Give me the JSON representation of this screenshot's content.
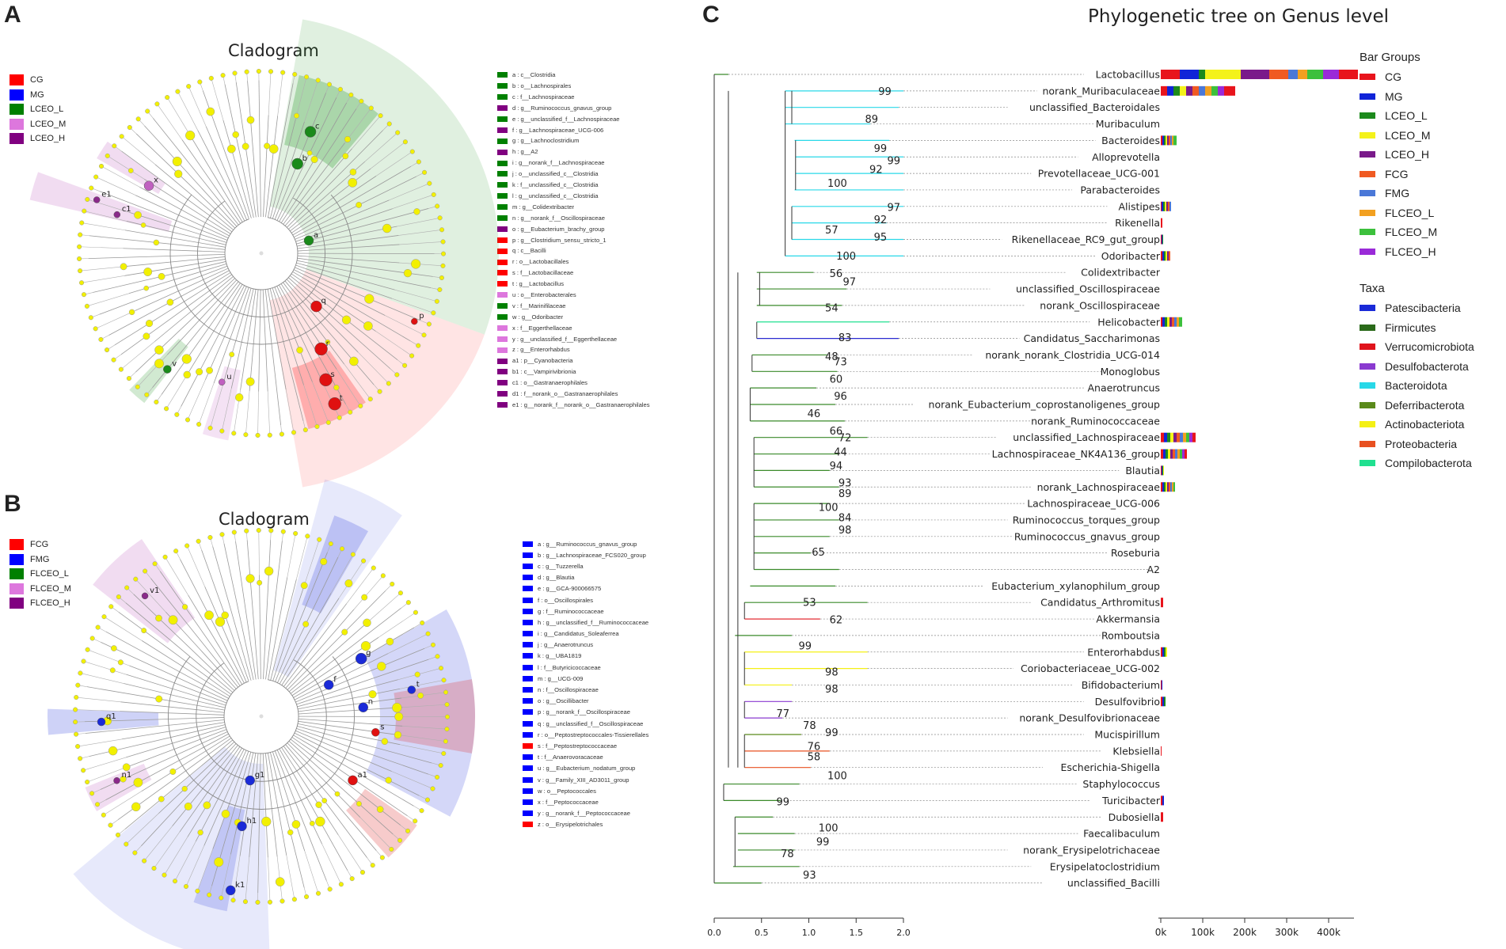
{
  "panel_a": {
    "letter": "A",
    "title": "Cladogram",
    "legend": [
      {
        "label": "CG",
        "color": "#ff0000"
      },
      {
        "label": "MG",
        "color": "#0000ff"
      },
      {
        "label": "LCEO_L",
        "color": "#008000"
      },
      {
        "label": "LCEO_M",
        "color": "#dd77dd"
      },
      {
        "label": "LCEO_H",
        "color": "#800080"
      }
    ],
    "keys": [
      {
        "text": "a : c__Clostridia",
        "color": "#008000"
      },
      {
        "text": "b : o__Lachnospirales",
        "color": "#008000"
      },
      {
        "text": "c : f__Lachnospiraceae",
        "color": "#008000"
      },
      {
        "text": "d : g__Ruminococcus_gnavus_group",
        "color": "#800080"
      },
      {
        "text": "e : g__unclassified_f__Lachnospiraceae",
        "color": "#008000"
      },
      {
        "text": "f : g__Lachnospiraceae_UCG-006",
        "color": "#800080"
      },
      {
        "text": "g : g__Lachnoclostridium",
        "color": "#008000"
      },
      {
        "text": "h : g__A2",
        "color": "#800080"
      },
      {
        "text": "i : g__norank_f__Lachnospiraceae",
        "color": "#008000"
      },
      {
        "text": "j : o__unclassified_c__Clostridia",
        "color": "#008000"
      },
      {
        "text": "k : f__unclassified_c__Clostridia",
        "color": "#008000"
      },
      {
        "text": "l : g__unclassified_c__Clostridia",
        "color": "#008000"
      },
      {
        "text": "m : g__Colidextribacter",
        "color": "#008000"
      },
      {
        "text": "n : g__norank_f__Oscillospiraceae",
        "color": "#008000"
      },
      {
        "text": "o : g__Eubacterium_brachy_group",
        "color": "#800080"
      },
      {
        "text": "p : g__Clostridium_sensu_stricto_1",
        "color": "#ff0000"
      },
      {
        "text": "q : c__Bacilli",
        "color": "#ff0000"
      },
      {
        "text": "r : o__Lactobacillales",
        "color": "#ff0000"
      },
      {
        "text": "s : f__Lactobacillaceae",
        "color": "#ff0000"
      },
      {
        "text": "t : g__Lactobacillus",
        "color": "#ff0000"
      },
      {
        "text": "u : o__Enterobacterales",
        "color": "#dd77dd"
      },
      {
        "text": "v : f__Marinifilaceae",
        "color": "#008000"
      },
      {
        "text": "w : g__Odoribacter",
        "color": "#008000"
      },
      {
        "text": "x : f__Eggerthellaceae",
        "color": "#dd77dd"
      },
      {
        "text": "y : g__unclassified_f__Eggerthellaceae",
        "color": "#dd77dd"
      },
      {
        "text": "z : g__Enterorhabdus",
        "color": "#dd77dd"
      },
      {
        "text": "a1 : p__Cyanobacteria",
        "color": "#800080"
      },
      {
        "text": "b1 : c__Vampirivibrionia",
        "color": "#800080"
      },
      {
        "text": "c1 : o__Gastranaerophilales",
        "color": "#800080"
      },
      {
        "text": "d1 : f__norank_o__Gastranaerophilales",
        "color": "#800080"
      },
      {
        "text": "e1 : g__norank_f__norank_o__Gastranaerophilales",
        "color": "#800080"
      }
    ]
  },
  "panel_b": {
    "letter": "B",
    "title": "Cladogram",
    "legend": [
      {
        "label": "FCG",
        "color": "#ff0000"
      },
      {
        "label": "FMG",
        "color": "#0000ff"
      },
      {
        "label": "FLCEO_L",
        "color": "#008000"
      },
      {
        "label": "FLCEO_M",
        "color": "#dd77dd"
      },
      {
        "label": "FLCEO_H",
        "color": "#800080"
      }
    ],
    "keys": [
      {
        "text": "a : g__Ruminococcus_gnavus_group",
        "color": "#0000ff"
      },
      {
        "text": "b : g__Lachnospiraceae_FCS020_group",
        "color": "#0000ff"
      },
      {
        "text": "c : g__Tuzzerella",
        "color": "#0000ff"
      },
      {
        "text": "d : g__Blautia",
        "color": "#0000ff"
      },
      {
        "text": "e : g__GCA-900066575",
        "color": "#0000ff"
      },
      {
        "text": "f : o__Oscillospirales",
        "color": "#0000ff"
      },
      {
        "text": "g : f__Ruminococcaceae",
        "color": "#0000ff"
      },
      {
        "text": "h : g__unclassified_f__Ruminococcaceae",
        "color": "#0000ff"
      },
      {
        "text": "i : g__Candidatus_Soleaferrea",
        "color": "#0000ff"
      },
      {
        "text": "j : g__Anaerotruncus",
        "color": "#0000ff"
      },
      {
        "text": "k : g__UBA1819",
        "color": "#0000ff"
      },
      {
        "text": "l : f__Butyricicoccaceae",
        "color": "#0000ff"
      },
      {
        "text": "m : g__UCG-009",
        "color": "#0000ff"
      },
      {
        "text": "n : f__Oscillospiraceae",
        "color": "#0000ff"
      },
      {
        "text": "o : g__Oscillibacter",
        "color": "#0000ff"
      },
      {
        "text": "p : g__norank_f__Oscillospiraceae",
        "color": "#0000ff"
      },
      {
        "text": "q : g__unclassified_f__Oscillospiraceae",
        "color": "#0000ff"
      },
      {
        "text": "r : o__Peptostreptococcales-Tissierellales",
        "color": "#0000ff"
      },
      {
        "text": "s : f__Peptostreptococcaceae",
        "color": "#ff0000"
      },
      {
        "text": "t : f__Anaerovoracaceae",
        "color": "#0000ff"
      },
      {
        "text": "u : g__Eubacterium_nodatum_group",
        "color": "#0000ff"
      },
      {
        "text": "v : g__Family_XIII_AD3011_group",
        "color": "#0000ff"
      },
      {
        "text": "w : o__Peptococcales",
        "color": "#0000ff"
      },
      {
        "text": "x : f__Peptococcaceae",
        "color": "#0000ff"
      },
      {
        "text": "y : g__norank_f__Peptococcaceae",
        "color": "#0000ff"
      },
      {
        "text": "z : o__Erysipelotrichales",
        "color": "#ff0000"
      }
    ]
  },
  "panel_c": {
    "letter": "C",
    "title": "Phylogenetic tree on Genus level",
    "bar_groups_title": "Bar Groups",
    "bar_groups": [
      {
        "label": "CG",
        "color": "#e8141c"
      },
      {
        "label": "MG",
        "color": "#1024d8"
      },
      {
        "label": "LCEO_L",
        "color": "#1c8a1c"
      },
      {
        "label": "LCEO_M",
        "color": "#f4f21a"
      },
      {
        "label": "LCEO_H",
        "color": "#7a1a8a"
      },
      {
        "label": "FCG",
        "color": "#f05a22"
      },
      {
        "label": "FMG",
        "color": "#4a78d8"
      },
      {
        "label": "FLCEO_L",
        "color": "#f2a020"
      },
      {
        "label": "FLCEO_M",
        "color": "#3cc03c"
      },
      {
        "label": "FLCEO_H",
        "color": "#9a2ad8"
      }
    ],
    "taxa_title": "Taxa",
    "taxa": [
      {
        "label": "Patescibacteria",
        "color": "#1a2ad8"
      },
      {
        "label": "Firmicutes",
        "color": "#2a6a1a"
      },
      {
        "label": "Verrucomicrobiota",
        "color": "#e0141c"
      },
      {
        "label": "Desulfobacterota",
        "color": "#8a3ad0"
      },
      {
        "label": "Bacteroidota",
        "color": "#28d8e8"
      },
      {
        "label": "Deferribacterota",
        "color": "#5a8a1a"
      },
      {
        "label": "Actinobacteriota",
        "color": "#f4f014"
      },
      {
        "label": "Proteobacteria",
        "color": "#e85020"
      },
      {
        "label": "Compilobacterota",
        "color": "#20e090"
      }
    ],
    "genera": [
      {
        "name": "Lactobacillus",
        "color": "#3a8a2a",
        "bars": [
          24,
          24,
          8,
          45,
          36,
          24,
          12,
          12,
          20,
          20,
          24
        ]
      },
      {
        "name": "norank_Muribaculaceae",
        "color": "#28d8e8",
        "bars": [
          8,
          8,
          8,
          8,
          8,
          8,
          8,
          8,
          8,
          8,
          14
        ]
      },
      {
        "name": "unclassified_Bacteroidales",
        "color": "#28d8e8",
        "bars": []
      },
      {
        "name": "Muribaculum",
        "color": "#28d8e8",
        "bars": []
      },
      {
        "name": "Bacteroides",
        "color": "#28d8e8",
        "bars": [
          2,
          2,
          2,
          2,
          2,
          2,
          2,
          2,
          4
        ]
      },
      {
        "name": "Alloprevotella",
        "color": "#28d8e8",
        "bars": []
      },
      {
        "name": "Prevotellaceae_UCG-001",
        "color": "#28d8e8",
        "bars": []
      },
      {
        "name": "Parabacteroides",
        "color": "#28d8e8",
        "bars": []
      },
      {
        "name": "Alistipes",
        "color": "#28d8e8",
        "bars": [
          1,
          2,
          2,
          2,
          2,
          2,
          2
        ]
      },
      {
        "name": "Rikenella",
        "color": "#28d8e8",
        "bars": [
          2
        ]
      },
      {
        "name": "Rikenellaceae_RC9_gut_group",
        "color": "#28d8e8",
        "bars": [
          1,
          1,
          1
        ]
      },
      {
        "name": "Odoribacter",
        "color": "#28d8e8",
        "bars": [
          2,
          2,
          2,
          2,
          2,
          2
        ]
      },
      {
        "name": "Colidextribacter",
        "color": "#3a8a2a",
        "bars": []
      },
      {
        "name": "unclassified_Oscillospiraceae",
        "color": "#3a8a2a",
        "bars": []
      },
      {
        "name": "norank_Oscillospiraceae",
        "color": "#3a8a2a",
        "bars": []
      },
      {
        "name": "Helicobacter",
        "color": "#20e090",
        "bars": [
          2,
          3,
          3,
          3,
          3,
          3,
          3,
          3,
          4
        ]
      },
      {
        "name": "Candidatus_Saccharimonas",
        "color": "#2a2ad0",
        "bars": []
      },
      {
        "name": "norank_norank_Clostridia_UCG-014",
        "color": "#3a8a2a",
        "bars": []
      },
      {
        "name": "Monoglobus",
        "color": "#3a8a2a",
        "bars": []
      },
      {
        "name": "Anaerotruncus",
        "color": "#3a8a2a",
        "bars": []
      },
      {
        "name": "norank_Eubacterium_coprostanoligenes_group",
        "color": "#3a8a2a",
        "bars": []
      },
      {
        "name": "norank_Ruminococcaceae",
        "color": "#3a8a2a",
        "bars": []
      },
      {
        "name": "unclassified_Lachnospiraceae",
        "color": "#3a8a2a",
        "bars": [
          4,
          4,
          4,
          4,
          4,
          4,
          4,
          4,
          4,
          4,
          4
        ]
      },
      {
        "name": "Lachnospiraceae_NK4A136_group",
        "color": "#3a8a2a",
        "bars": [
          3,
          3,
          3,
          3,
          3,
          3,
          3,
          3,
          3,
          3,
          3
        ]
      },
      {
        "name": "Blautia",
        "color": "#3a8a2a",
        "bars": [
          1,
          1,
          1,
          1
        ]
      },
      {
        "name": "norank_Lachnospiraceae",
        "color": "#3a8a2a",
        "bars": [
          2,
          2,
          2,
          2,
          2,
          2,
          2,
          2,
          2
        ]
      },
      {
        "name": "Lachnospiraceae_UCG-006",
        "color": "#3a8a2a",
        "bars": []
      },
      {
        "name": "Ruminococcus_torques_group",
        "color": "#3a8a2a",
        "bars": []
      },
      {
        "name": "Ruminococcus_gnavus_group",
        "color": "#3a8a2a",
        "bars": []
      },
      {
        "name": "Roseburia",
        "color": "#3a8a2a",
        "bars": []
      },
      {
        "name": "A2",
        "color": "#3a8a2a",
        "bars": []
      },
      {
        "name": "Eubacterium_xylanophilum_group",
        "color": "#3a8a2a",
        "bars": []
      },
      {
        "name": "Candidatus_Arthromitus",
        "color": "#3a8a2a",
        "bars": [
          3
        ]
      },
      {
        "name": "Akkermansia",
        "color": "#e0141c",
        "bars": []
      },
      {
        "name": "Romboutsia",
        "color": "#3a8a2a",
        "bars": []
      },
      {
        "name": "Enterorhabdus",
        "color": "#f4f014",
        "bars": [
          2,
          2,
          2,
          2
        ]
      },
      {
        "name": "Coriobacteriaceae_UCG-002",
        "color": "#f4f014",
        "bars": []
      },
      {
        "name": "Bifidobacterium",
        "color": "#f4f014",
        "bars": [
          1,
          1
        ]
      },
      {
        "name": "Desulfovibrio",
        "color": "#8a3ad0",
        "bars": [
          2,
          2,
          2
        ]
      },
      {
        "name": "norank_Desulfovibrionaceae",
        "color": "#8a3ad0",
        "bars": []
      },
      {
        "name": "Mucispirillum",
        "color": "#5a8a1a",
        "bars": []
      },
      {
        "name": "Klebsiella",
        "color": "#e85020",
        "bars": [
          1
        ]
      },
      {
        "name": "Escherichia-Shigella",
        "color": "#e85020",
        "bars": []
      },
      {
        "name": "Staphylococcus",
        "color": "#3a8a2a",
        "bars": []
      },
      {
        "name": "Turicibacter",
        "color": "#3a8a2a",
        "bars": [
          2,
          2
        ]
      },
      {
        "name": "Dubosiella",
        "color": "#3a8a2a",
        "bars": [
          3
        ]
      },
      {
        "name": "Faecalibaculum",
        "color": "#3a8a2a",
        "bars": []
      },
      {
        "name": "norank_Erysipelotrichaceae",
        "color": "#3a8a2a",
        "bars": []
      },
      {
        "name": "Erysipelatoclostridium",
        "color": "#3a8a2a",
        "bars": []
      },
      {
        "name": "unclassified_Bacilli",
        "color": "#3a8a2a",
        "bars": []
      }
    ],
    "bootstrap": [
      "99",
      "89",
      "99",
      "99",
      "92",
      "100",
      "97",
      "92",
      "95",
      "57",
      "100",
      "56",
      "97",
      "54",
      "83",
      "48",
      "73",
      "60",
      "96",
      "46",
      "66",
      "72",
      "44",
      "94",
      "93",
      "89",
      "100",
      "84",
      "98",
      "65",
      "53",
      "62",
      "99",
      "98",
      "98",
      "78",
      "99",
      "76",
      "58",
      "100",
      "77",
      "99",
      "100",
      "99",
      "78",
      "93"
    ],
    "tree_axis": {
      "ticks": [
        "0.0",
        "0.5",
        "1.0",
        "1.5",
        "2.0"
      ],
      "range": [
        0,
        2.0
      ]
    },
    "bar_axis": {
      "ticks": [
        "0k",
        "100k",
        "200k",
        "300k",
        "400k"
      ]
    }
  }
}
